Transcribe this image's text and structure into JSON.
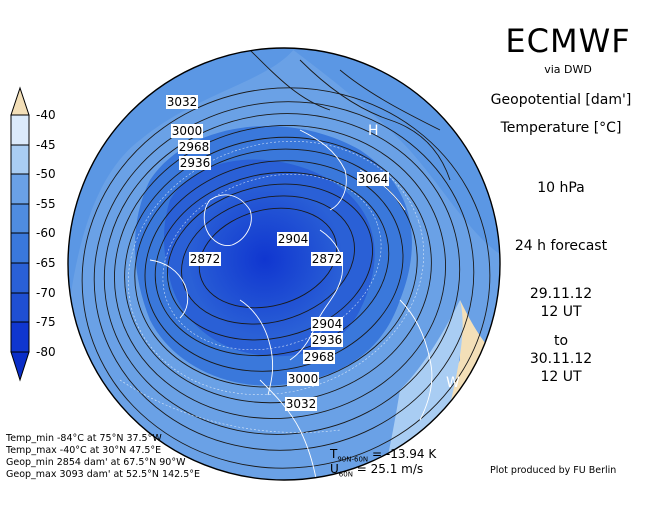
{
  "header": {
    "title": "ECMWF",
    "subtitle": "via DWD",
    "variable1": "Geopotential [dam']",
    "variable2": "Temperature [°C]",
    "level": "10 hPa",
    "forecast": "24 h forecast",
    "start_date": "29.11.12",
    "start_time": "12 UT",
    "to_label": "to",
    "valid_date": "30.11.12",
    "valid_time": "12 UT"
  },
  "colorbar": {
    "labels": [
      "-40",
      "-45",
      "-50",
      "-55",
      "-60",
      "-65",
      "-70",
      "-75",
      "-80"
    ],
    "colors": [
      "#f3dfb8",
      "#dbeafb",
      "#a9cdf3",
      "#6aa1e6",
      "#4f8ce0",
      "#3a78db",
      "#2a60d6",
      "#1f4fd3",
      "#1036d0"
    ]
  },
  "map": {
    "contour_labels": [
      "3032",
      "3000",
      "2968",
      "2936",
      "3064",
      "2904",
      "2872",
      "2872",
      "2904",
      "2936",
      "2968",
      "3000",
      "3032"
    ],
    "high_marker": "H",
    "west_marker": "W"
  },
  "stats": {
    "temp_min": "Temp_min -84°C at 75°N 37.5°W",
    "temp_max": "Temp_max -40°C at 30°N 47.5°E",
    "geop_min": "Geop_min 2854 dam' at 67.5°N 90°W",
    "geop_max": "Geop_max 3093 dam' at 52.5°N 142.5°E"
  },
  "indices": {
    "t_label": "T",
    "t_sub": "90N-60N",
    "t_value": "=  -13.94 K",
    "u_label": "U",
    "u_sub": "60N",
    "u_value": "=  25.1 m/s"
  },
  "credit": "Plot produced by FU Berlin"
}
